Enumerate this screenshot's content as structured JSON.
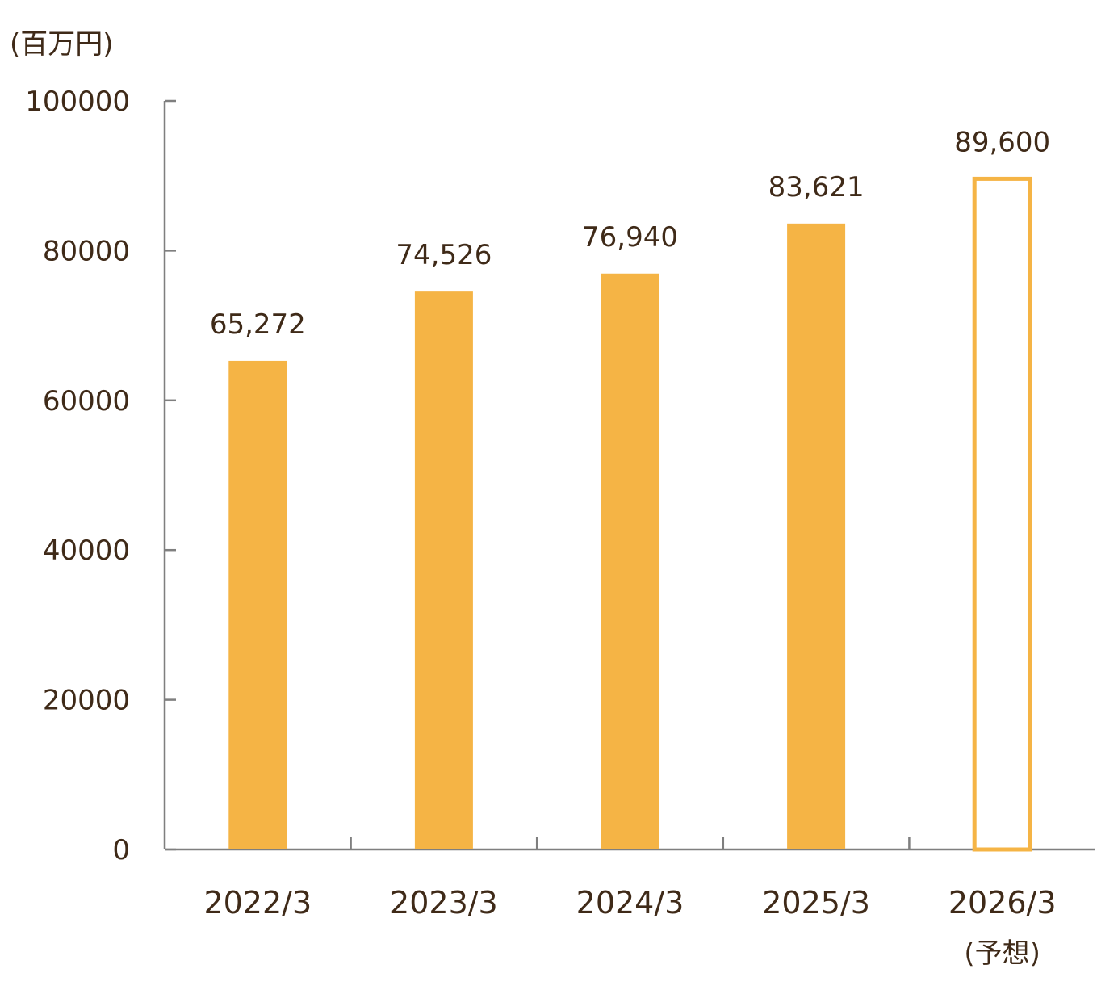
{
  "chart_data": {
    "type": "bar",
    "unit_label": "(百万円)",
    "categories": [
      "2022/3",
      "2023/3",
      "2024/3",
      "2025/3",
      "2026/3"
    ],
    "category_sublabels": [
      "",
      "",
      "",
      "",
      "(予想)"
    ],
    "values": [
      65272,
      74526,
      76940,
      83621,
      89600
    ],
    "value_labels": [
      "65,272",
      "74,526",
      "76,940",
      "83,621",
      "89,600"
    ],
    "bar_styles": [
      "filled",
      "filled",
      "filled",
      "filled",
      "outline"
    ],
    "ylim": [
      0,
      100000
    ],
    "yticks": [
      0,
      20000,
      40000,
      60000,
      80000,
      100000
    ],
    "ytick_labels": [
      "0",
      "20000",
      "40000",
      "60000",
      "80000",
      "100000"
    ],
    "grid": false,
    "legend": "none",
    "colors": {
      "bar": "#F5B445",
      "text": "#3F2A18",
      "axis": "#7F7F7F"
    }
  }
}
